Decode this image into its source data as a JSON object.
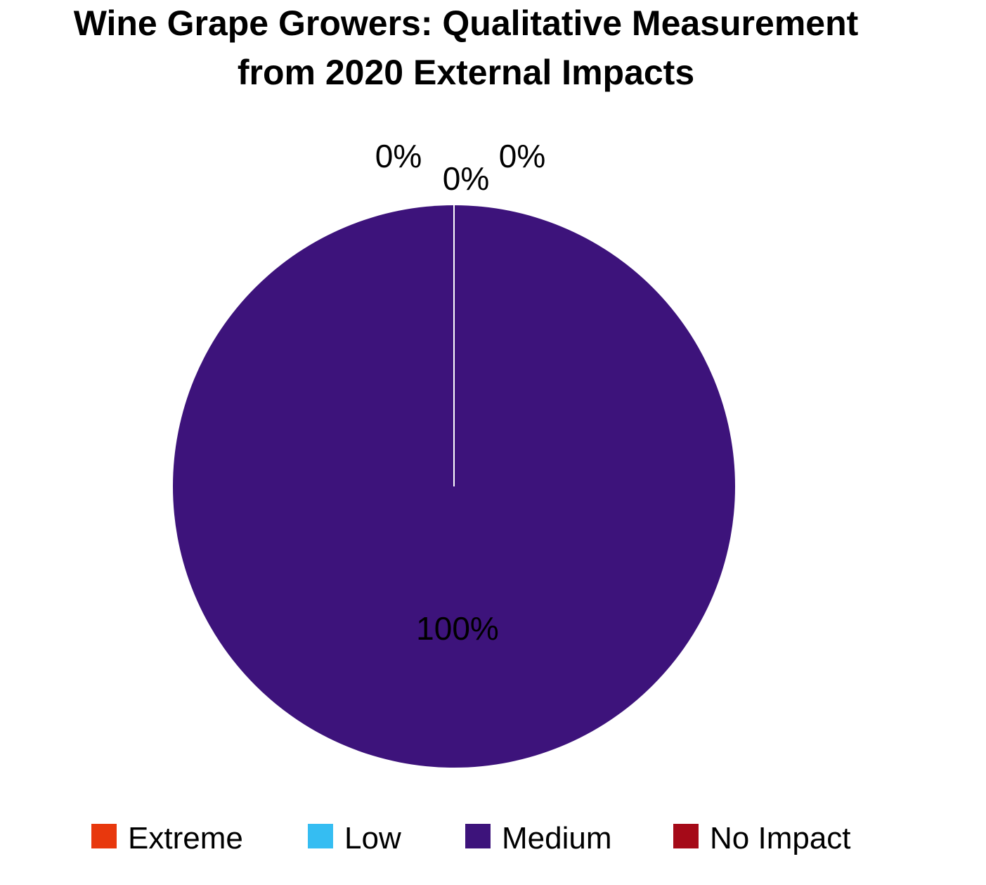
{
  "chart_data": {
    "type": "pie",
    "title": "Wine Grape Growers: Qualitative Measurement from 2020 External Impacts",
    "title_lines": [
      "Wine Grape Growers: Qualitative Measurement",
      "from 2020 External Impacts"
    ],
    "categories": [
      "Extreme",
      "Low",
      "Medium",
      "No Impact"
    ],
    "values": [
      0,
      0,
      100,
      0
    ],
    "data_labels": [
      "0%",
      "0%",
      "100%",
      "0%"
    ],
    "colors": [
      "#e8380d",
      "#35bdf2",
      "#3d137b",
      "#a50a18"
    ],
    "legend": {
      "position": "bottom",
      "entries": [
        "Extreme",
        "Low",
        "Medium",
        "No Impact"
      ]
    }
  }
}
